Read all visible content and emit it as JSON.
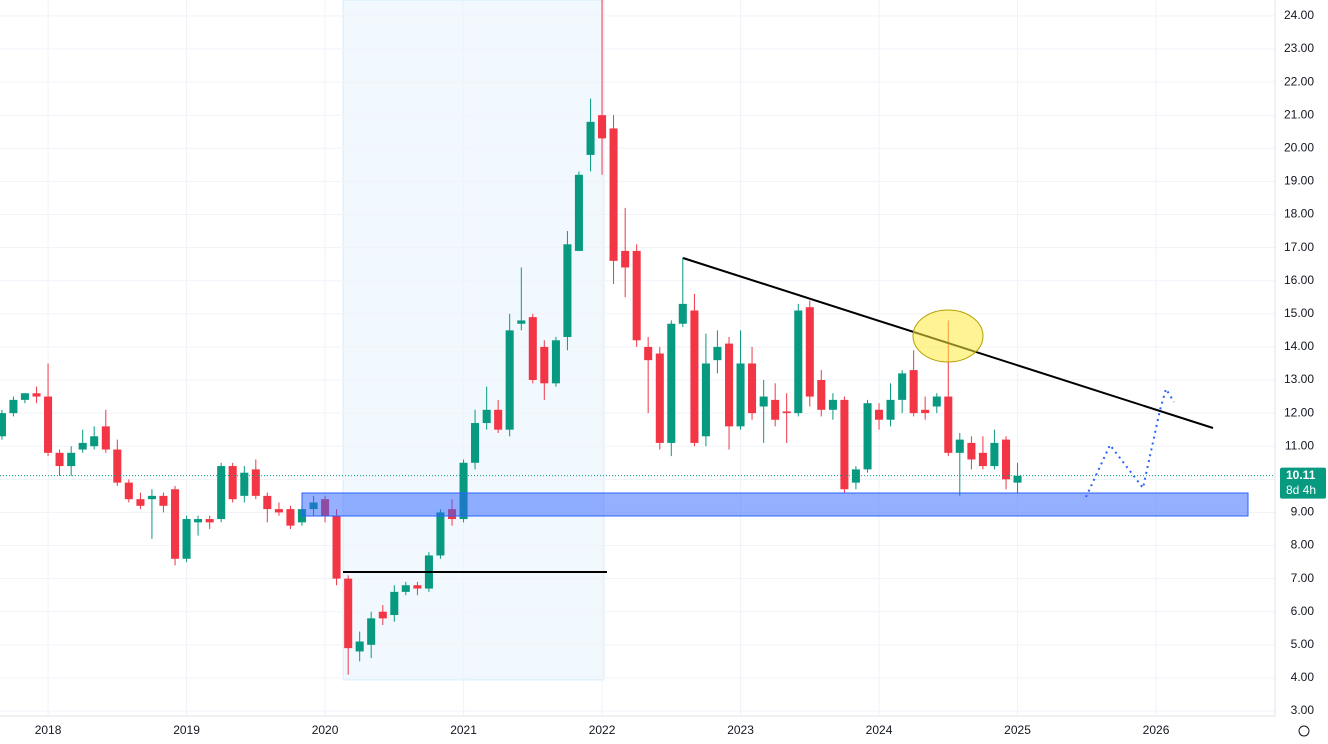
{
  "chart_data": {
    "type": "candlestick",
    "x": [
      2017.667,
      2017.75,
      2017.833,
      2017.917,
      2018,
      2018.083,
      2018.167,
      2018.25,
      2018.333,
      2018.417,
      2018.5,
      2018.583,
      2018.667,
      2018.75,
      2018.833,
      2018.917,
      2019,
      2019.083,
      2019.167,
      2019.25,
      2019.333,
      2019.417,
      2019.5,
      2019.583,
      2019.667,
      2019.75,
      2019.833,
      2019.917,
      2020,
      2020.083,
      2020.167,
      2020.25,
      2020.333,
      2020.417,
      2020.5,
      2020.583,
      2020.667,
      2020.75,
      2020.833,
      2020.917,
      2021,
      2021.083,
      2021.167,
      2021.25,
      2021.333,
      2021.417,
      2021.5,
      2021.583,
      2021.667,
      2021.75,
      2021.833,
      2021.917,
      2022,
      2022.083,
      2022.167,
      2022.25,
      2022.333,
      2022.417,
      2022.5,
      2022.583,
      2022.667,
      2022.75,
      2022.833,
      2022.917,
      2023,
      2023.083,
      2023.167,
      2023.25,
      2023.333,
      2023.417,
      2023.5,
      2023.583,
      2023.667,
      2023.75,
      2023.833,
      2023.917,
      2024,
      2024.083,
      2024.167,
      2024.25,
      2024.333,
      2024.417,
      2024.5,
      2024.583,
      2024.667,
      2024.75,
      2024.833,
      2024.917,
      2025
    ],
    "open": [
      11.3,
      12.0,
      12.4,
      12.6,
      12.5,
      10.8,
      10.4,
      10.9,
      11.0,
      11.6,
      10.9,
      9.9,
      9.4,
      9.4,
      9.5,
      9.7,
      7.6,
      8.7,
      8.8,
      8.8,
      10.4,
      9.5,
      10.3,
      9.5,
      9.1,
      9.1,
      8.7,
      9.1,
      9.4,
      8.9,
      7.0,
      4.8,
      5.0,
      6.0,
      5.9,
      6.6,
      6.8,
      6.7,
      7.7,
      9.1,
      8.8,
      10.5,
      11.7,
      12.1,
      11.5,
      14.7,
      14.9,
      14.0,
      12.9,
      14.3,
      16.9,
      19.8,
      21.0,
      20.6,
      16.9,
      16.9,
      14.0,
      13.8,
      11.1,
      14.7,
      15.1,
      11.3,
      13.6,
      14.1,
      11.6,
      13.5,
      12.2,
      12.4,
      12.05,
      12.0,
      15.2,
      13.0,
      12.1,
      12.4,
      9.9,
      10.3,
      12.1,
      11.8,
      12.4,
      13.3,
      12.1,
      12.2,
      12.5,
      10.8,
      11.1,
      10.8,
      10.4,
      11.2,
      9.9
    ],
    "high": [
      12.1,
      12.5,
      12.6,
      12.8,
      13.5,
      10.9,
      11.0,
      11.5,
      11.6,
      12.1,
      11.2,
      10.0,
      9.6,
      9.7,
      9.6,
      9.8,
      8.9,
      8.9,
      8.9,
      10.5,
      10.5,
      10.4,
      10.6,
      9.6,
      9.3,
      9.2,
      9.2,
      9.5,
      9.5,
      9.1,
      7.1,
      5.4,
      6.0,
      6.2,
      6.8,
      6.9,
      6.9,
      7.8,
      9.1,
      9.4,
      10.6,
      12.1,
      12.8,
      12.4,
      15.0,
      16.4,
      15.0,
      14.2,
      14.3,
      17.5,
      19.3,
      21.5,
      24.5,
      21.0,
      18.2,
      17.1,
      14.3,
      14.0,
      14.8,
      16.7,
      15.6,
      14.4,
      14.5,
      14.3,
      14.5,
      14.0,
      13.0,
      12.9,
      12.6,
      15.3,
      15.4,
      13.3,
      12.6,
      12.5,
      10.4,
      12.4,
      12.3,
      12.9,
      13.3,
      13.9,
      12.5,
      12.6,
      14.8,
      11.4,
      11.3,
      11.3,
      11.5,
      11.3,
      10.5
    ],
    "low": [
      11.2,
      11.9,
      12.3,
      12.3,
      10.7,
      10.1,
      10.1,
      10.8,
      10.9,
      10.8,
      9.8,
      9.3,
      9.1,
      8.2,
      9.0,
      7.4,
      7.5,
      8.3,
      8.5,
      8.7,
      9.3,
      9.3,
      9.4,
      8.7,
      8.9,
      8.5,
      8.6,
      8.9,
      8.7,
      6.8,
      4.1,
      4.5,
      4.6,
      5.6,
      5.7,
      6.5,
      6.5,
      6.6,
      7.6,
      8.6,
      8.7,
      10.3,
      11.5,
      11.4,
      11.3,
      14.5,
      12.9,
      12.4,
      12.8,
      13.9,
      16.9,
      19.3,
      19.2,
      15.9,
      15.5,
      14.0,
      12.0,
      10.9,
      10.7,
      14.6,
      11.0,
      11.0,
      13.2,
      10.9,
      11.5,
      11.8,
      11.1,
      11.6,
      11.1,
      11.9,
      12.2,
      11.9,
      11.8,
      9.6,
      9.7,
      10.2,
      11.5,
      11.6,
      12.0,
      11.9,
      11.8,
      12.0,
      10.7,
      9.5,
      10.3,
      10.3,
      10.3,
      9.7,
      9.6
    ],
    "close": [
      12.0,
      12.4,
      12.6,
      12.5,
      10.8,
      10.4,
      10.8,
      11.1,
      11.3,
      10.9,
      9.9,
      9.4,
      9.2,
      9.5,
      9.2,
      7.6,
      8.8,
      8.8,
      8.7,
      10.4,
      9.4,
      10.2,
      9.5,
      9.1,
      9.0,
      8.6,
      9.1,
      9.3,
      8.9,
      7.0,
      4.9,
      5.1,
      5.8,
      5.8,
      6.6,
      6.8,
      6.7,
      7.7,
      9.0,
      8.8,
      10.5,
      11.7,
      12.1,
      11.5,
      14.5,
      14.8,
      13.0,
      12.9,
      14.2,
      17.1,
      19.2,
      20.8,
      20.3,
      16.6,
      16.4,
      14.2,
      13.6,
      11.1,
      14.7,
      15.3,
      11.1,
      13.5,
      14.0,
      11.6,
      13.5,
      12.0,
      12.5,
      11.8,
      12.0,
      15.1,
      12.5,
      12.1,
      12.4,
      9.7,
      10.3,
      12.3,
      11.8,
      12.4,
      13.2,
      12.0,
      12.0,
      12.5,
      10.8,
      11.2,
      10.6,
      10.4,
      11.1,
      10.0,
      10.11
    ],
    "up_color": "#089981",
    "down_color": "#f23645",
    "xlim": [
      2017.653,
      2026.859
    ],
    "xticks": [
      2018,
      2019,
      2020,
      2021,
      2022,
      2023,
      2024,
      2025,
      2026
    ],
    "ylim": [
      2.85,
      24.48
    ],
    "yticks": [
      {
        "value": 3,
        "label": "3.00"
      },
      {
        "value": 4,
        "label": "4.00"
      },
      {
        "value": 5,
        "label": "5.00"
      },
      {
        "value": 6,
        "label": "6.00"
      },
      {
        "value": 7,
        "label": "7.00"
      },
      {
        "value": 8,
        "label": "8.00"
      },
      {
        "value": 9,
        "label": "9.00"
      },
      {
        "value": 10,
        "label": "10.00"
      },
      {
        "value": 11,
        "label": "11.00"
      },
      {
        "value": 12,
        "label": "12.00"
      },
      {
        "value": 13,
        "label": "13.00"
      },
      {
        "value": 14,
        "label": "14.00"
      },
      {
        "value": 15,
        "label": "15.00"
      },
      {
        "value": 16,
        "label": "16.00"
      },
      {
        "value": 17,
        "label": "17.00"
      },
      {
        "value": 18,
        "label": "18.00"
      },
      {
        "value": 19,
        "label": "19.00"
      },
      {
        "value": 20,
        "label": "20.00"
      },
      {
        "value": 21,
        "label": "21.00"
      },
      {
        "value": 22,
        "label": "22.00"
      },
      {
        "value": 23,
        "label": "23.00"
      },
      {
        "value": 24,
        "label": "24.00"
      }
    ],
    "grid": true,
    "last_price": 10.11,
    "countdown": "8d 4h"
  }
}
